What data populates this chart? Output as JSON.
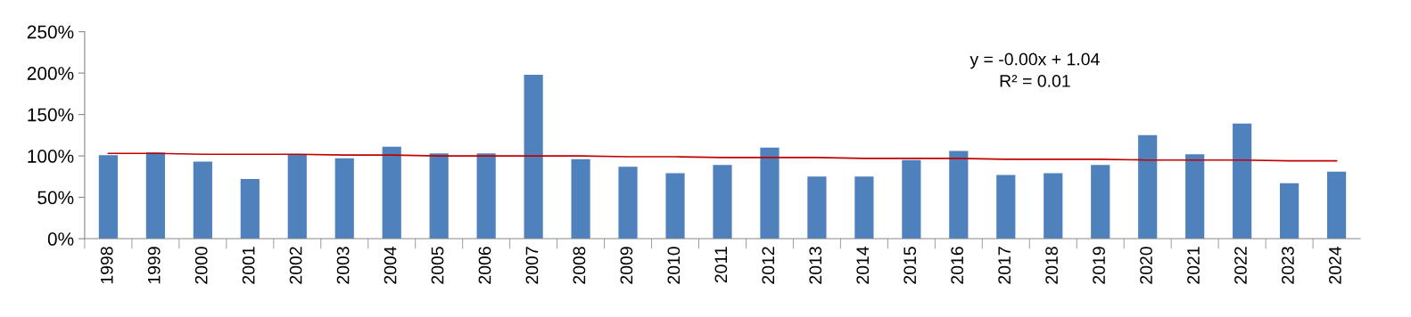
{
  "chart_data": {
    "type": "bar",
    "categories": [
      "1998",
      "1999",
      "2000",
      "2001",
      "2002",
      "2003",
      "2004",
      "2005",
      "2006",
      "2007",
      "2008",
      "2009",
      "2010",
      "2011",
      "2012",
      "2013",
      "2014",
      "2015",
      "2016",
      "2017",
      "2018",
      "2019",
      "2020",
      "2021",
      "2022",
      "2023",
      "2024"
    ],
    "series": [
      {
        "color": "#4f81bd",
        "values": [
          101,
          104,
          93,
          72,
          102,
          97,
          111,
          103,
          103,
          198,
          96,
          87,
          79,
          89,
          110,
          75,
          75,
          95,
          106,
          77,
          79,
          89,
          125,
          102,
          139,
          67,
          81
        ]
      },
      {
        "type": "line",
        "color": "#c00000",
        "values": [
          103,
          103,
          102,
          102,
          102,
          101,
          101,
          100,
          100,
          100,
          100,
          99,
          99,
          98,
          98,
          98,
          97,
          97,
          97,
          96,
          96,
          96,
          95,
          95,
          95,
          94,
          94
        ]
      }
    ],
    "ylim": [
      0,
      250
    ],
    "yticks": [
      {
        "value": 0,
        "label": "0%"
      },
      {
        "value": 50,
        "label": "50%"
      },
      {
        "value": 100,
        "label": "100%"
      },
      {
        "value": 150,
        "label": "150%"
      },
      {
        "value": 200,
        "label": "200%"
      },
      {
        "value": 250,
        "label": "250%"
      }
    ],
    "annotations": [
      "y = -0.00x + 1.04",
      "R² = 0.01"
    ],
    "grid": false,
    "legend": false
  }
}
